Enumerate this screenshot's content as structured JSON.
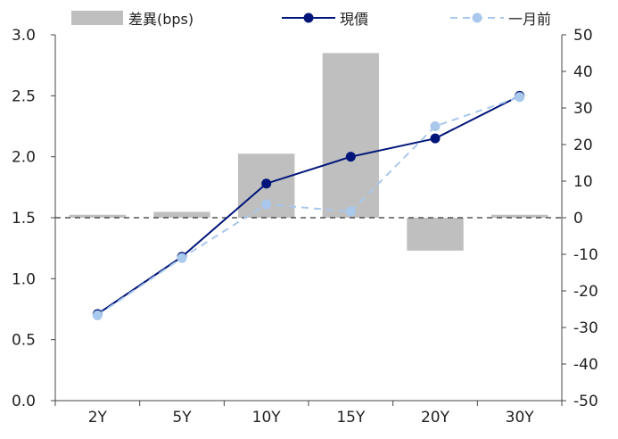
{
  "chart_data": {
    "type": "bar+line",
    "categories": [
      "2Y",
      "5Y",
      "10Y",
      "15Y",
      "20Y",
      "30Y"
    ],
    "left_axis": {
      "min": 0.0,
      "max": 3.0,
      "ticks": [
        "0.0",
        "0.5",
        "1.0",
        "1.5",
        "2.0",
        "2.5",
        "3.0"
      ]
    },
    "right_axis": {
      "min": -50,
      "max": 50,
      "ticks": [
        "-50",
        "-40",
        "-30",
        "-20",
        "-10",
        "0",
        "10",
        "20",
        "30",
        "40",
        "50"
      ]
    },
    "bar_series": {
      "name": "差異(bps)",
      "axis": "right",
      "values": [
        0.8,
        1.6,
        17.5,
        45.0,
        -9.0,
        0.8
      ],
      "color": "#bfbfbf"
    },
    "line_series": [
      {
        "name": "現價",
        "axis": "left",
        "values": [
          0.71,
          1.18,
          1.78,
          2.0,
          2.15,
          2.5
        ],
        "color": "#00157a",
        "style": "solid"
      },
      {
        "name": "一月前",
        "axis": "left",
        "values": [
          0.7,
          1.17,
          1.61,
          1.55,
          2.25,
          2.49
        ],
        "color": "#a9c8ec",
        "style": "dashed"
      }
    ],
    "zero_line": {
      "axis": "right",
      "value": 0,
      "style": "dashed"
    },
    "legend_position": "top"
  }
}
